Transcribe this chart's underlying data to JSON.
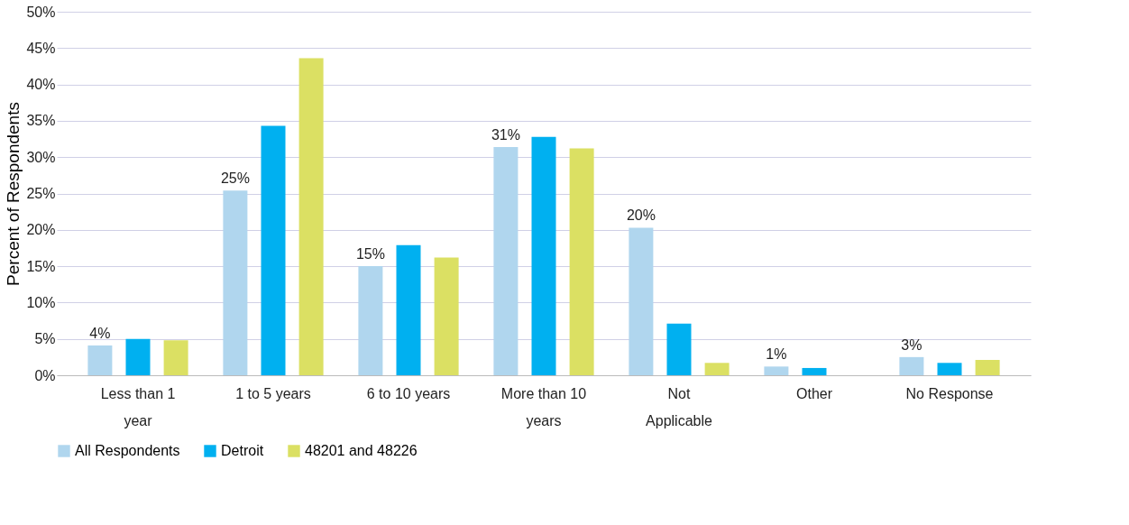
{
  "chart_data": {
    "type": "bar",
    "categories": [
      "Less than 1 year",
      "1 to 5 years",
      "6 to 10 years",
      "More than 10 years",
      "Not Applicable",
      "Other",
      "No Response"
    ],
    "series": [
      {
        "name": "All Respondents",
        "color": "#b0d6ee",
        "values": [
          4.1,
          25.4,
          15.0,
          31.4,
          20.3,
          1.2,
          2.5
        ],
        "value_labels": [
          "4%",
          "25%",
          "15%",
          "31%",
          "20%",
          "1%",
          "3%"
        ]
      },
      {
        "name": "Detroit",
        "color": "#00b0f0",
        "values": [
          5.0,
          34.3,
          17.9,
          32.8,
          7.1,
          1.0,
          1.7
        ]
      },
      {
        "name": "48201 and 48226",
        "color": "#dbe063",
        "values": [
          4.8,
          43.6,
          16.2,
          31.2,
          1.7,
          0,
          2.1
        ]
      }
    ],
    "ylabel": "Percent of Respondents",
    "ylim": [
      0,
      50
    ],
    "yticks": [
      {
        "value": 0,
        "label": "0%"
      },
      {
        "value": 5,
        "label": "5%"
      },
      {
        "value": 10,
        "label": "10%"
      },
      {
        "value": 15,
        "label": "15%"
      },
      {
        "value": 20,
        "label": "20%"
      },
      {
        "value": 25,
        "label": "25%"
      },
      {
        "value": 30,
        "label": "30%"
      },
      {
        "value": 35,
        "label": "35%"
      },
      {
        "value": 40,
        "label": "40%"
      },
      {
        "value": 45,
        "label": "45%"
      },
      {
        "value": 50,
        "label": "50%"
      }
    ],
    "grid": "y",
    "legend": "bottom"
  }
}
